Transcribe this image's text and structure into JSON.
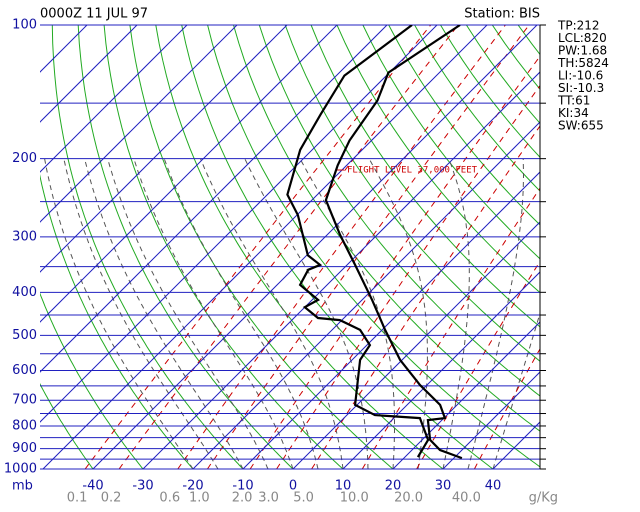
{
  "chart_data": {
    "type": "skewt",
    "title": "0000Z 11 JUL 97",
    "station": "Station: BIS",
    "info": [
      "TP:212",
      "LCL:820",
      "PW:1.68",
      "TH:5824",
      "LI:-10.6",
      "SI:-10.3",
      "TT:61",
      "KI:34",
      "SW:655"
    ],
    "annotation": "FLIGHT LEVEL 37,000 FEET",
    "ylabel": "mb",
    "ylog": true,
    "ylim": [
      1000,
      100
    ],
    "yticks": [
      100,
      200,
      300,
      400,
      500,
      600,
      700,
      800,
      900,
      1000
    ],
    "xlim": [
      -50.6,
      49.4
    ],
    "xticks": [
      -40,
      -30,
      -20,
      -10,
      0,
      10,
      20,
      30,
      40
    ],
    "mixing_ratio_label": "g/Kg",
    "mixing_ratio_ticks": [
      0.1,
      0.2,
      0.6,
      {
        "value": 1,
        "label": "1.0"
      },
      {
        "value": 2,
        "label": "2.0"
      },
      {
        "value": 3,
        "label": "3.0"
      },
      {
        "value": 5,
        "label": "5.0"
      },
      {
        "value": 10,
        "label": "10.0"
      },
      {
        "value": 20,
        "label": "20.0"
      },
      {
        "value": 40,
        "label": "40.0"
      }
    ],
    "series": [
      {
        "color": "#000000",
        "y": [
          100,
          128,
          148,
          182,
          207,
          248,
          297,
          347,
          416,
          486,
          568,
          647,
          717,
          768,
          776,
          860,
          906,
          945
        ],
        "x": [
          -55.4,
          -60.2,
          -56.8,
          -54.4,
          -51.8,
          -47.2,
          -37.4,
          -28.4,
          -18,
          -9.4,
          -0.4,
          8.6,
          16.6,
          20.2,
          17.2,
          21.6,
          25.6,
          31.6
        ]
      },
      {
        "color": "#000000",
        "y": [
          100,
          130,
          159,
          191,
          241,
          268,
          330,
          347,
          356,
          385,
          416,
          432,
          457,
          462,
          486,
          526,
          568,
          717,
          756,
          768,
          860,
          940
        ],
        "x": [
          -65,
          -68.4,
          -65.4,
          -62.4,
          -56,
          -49.8,
          -39.8,
          -35.4,
          -36.8,
          -35.4,
          -28.8,
          -30,
          -25.2,
          -20.4,
          -14.4,
          -9.4,
          -8.4,
          -0.4,
          5.6,
          15.2,
          21.2,
          22.6
        ]
      }
    ]
  }
}
